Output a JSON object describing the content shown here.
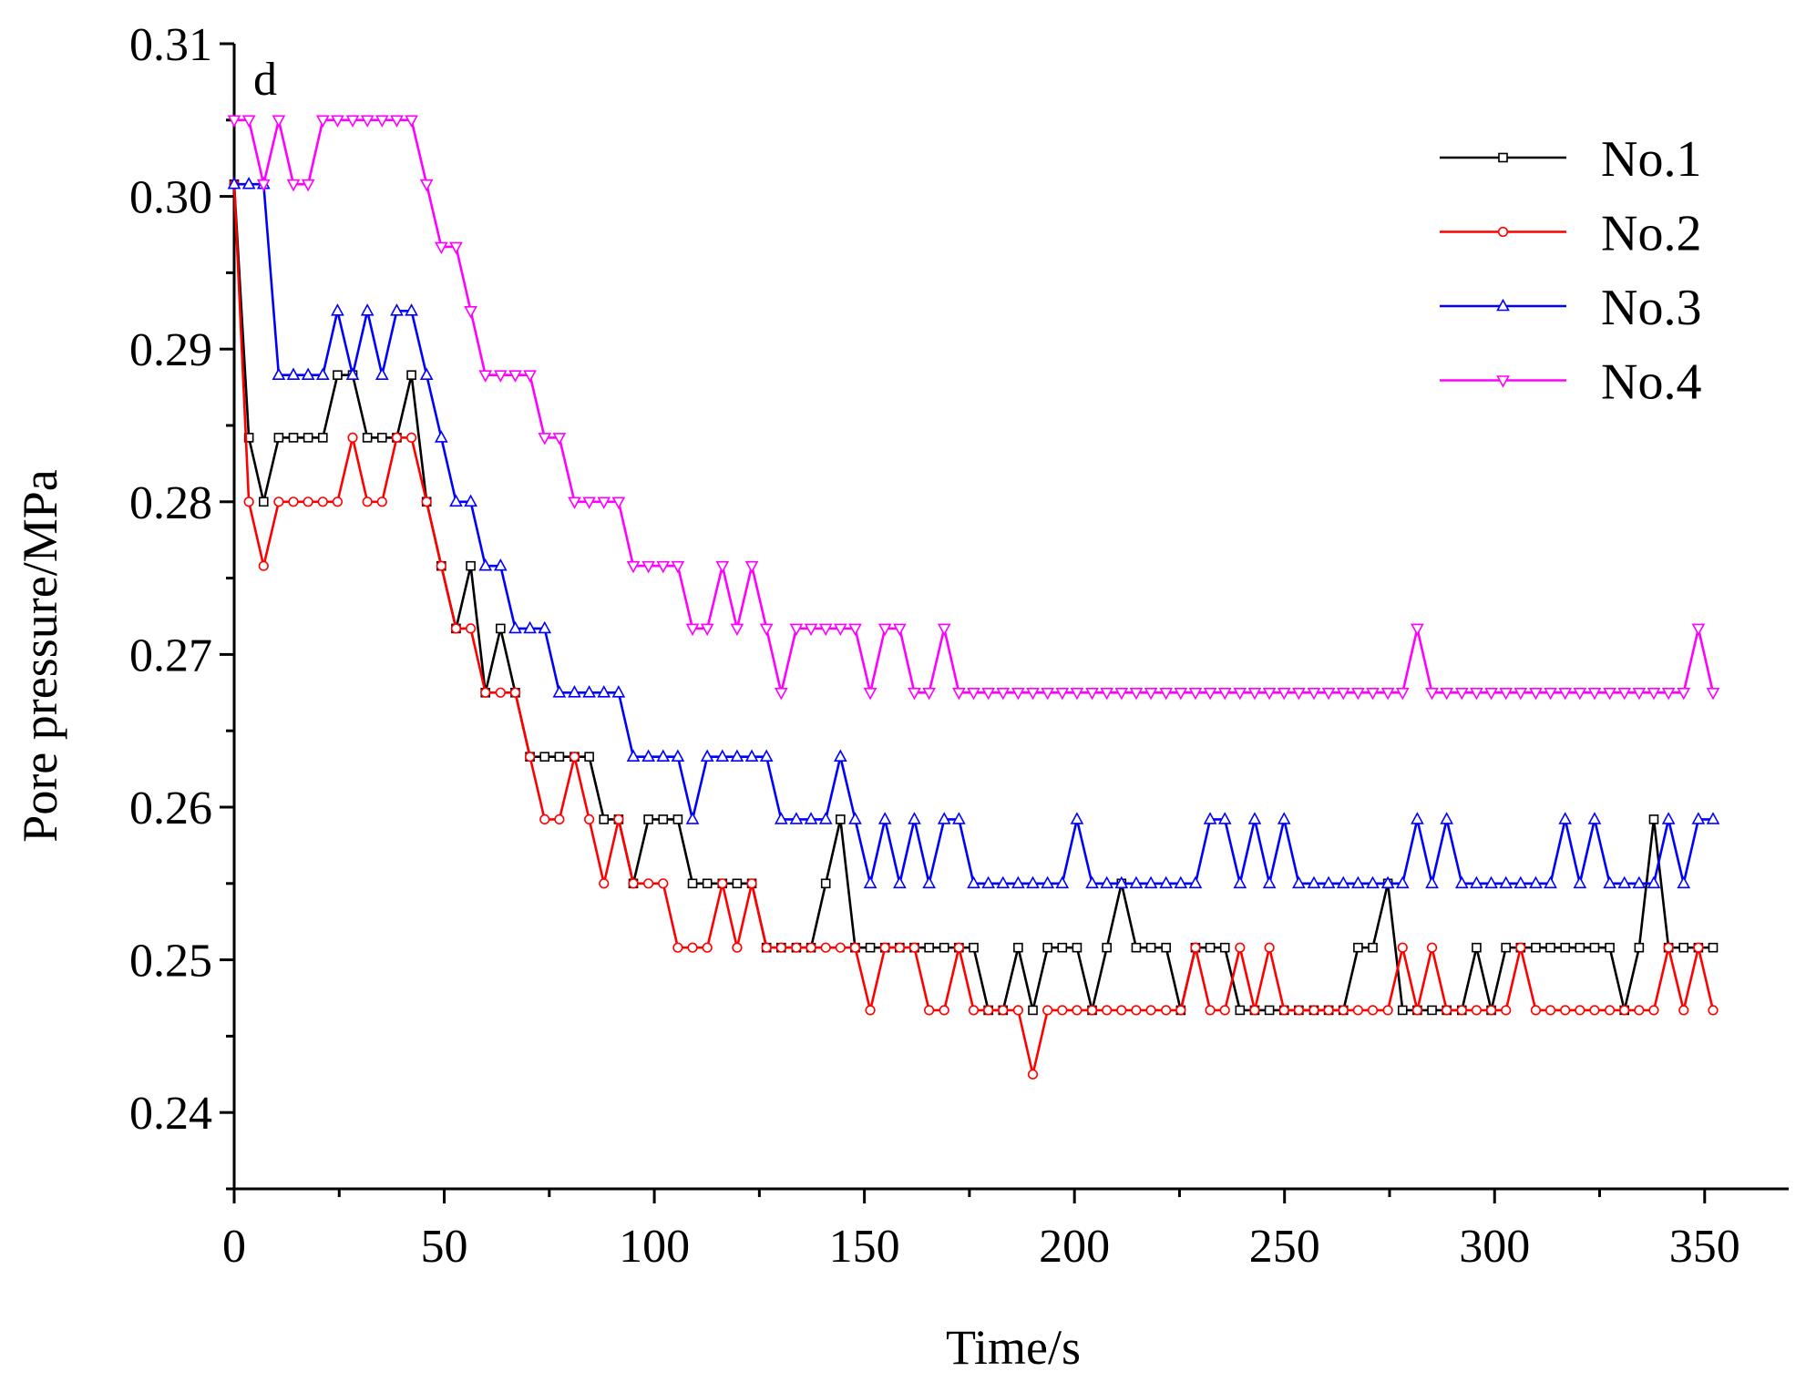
{
  "chart_data": {
    "type": "line",
    "title": "",
    "panel_label": "d",
    "xlabel": "Time/s",
    "ylabel": "Pore pressure/MPa",
    "xlim": [
      0,
      370
    ],
    "ylim": [
      0.235,
      0.31
    ],
    "xticks": [
      "0",
      "50",
      "100",
      "150",
      "200",
      "250",
      "300",
      "350"
    ],
    "yticks": [
      "0.24",
      "0.25",
      "0.26",
      "0.27",
      "0.28",
      "0.29",
      "0.30",
      "0.31"
    ],
    "grid": false,
    "legend_position": "top-right",
    "x": [
      0,
      3.5,
      7,
      10.6,
      14.1,
      17.6,
      21.1,
      24.6,
      28.2,
      31.7,
      35.2,
      38.7,
      42.2,
      45.8,
      49.3,
      52.8,
      56.3,
      59.8,
      63.4,
      66.9,
      70.4,
      73.9,
      77.4,
      81,
      84.5,
      88,
      91.5,
      95,
      98.6,
      102.1,
      105.6,
      109.1,
      112.6,
      116.2,
      119.7,
      123.2,
      126.7,
      130.2,
      133.8,
      137.3,
      140.8,
      144.3,
      147.8,
      151.4,
      154.9,
      158.4,
      161.9,
      165.4,
      169,
      172.5,
      176,
      179.5,
      183,
      186.6,
      190.1,
      193.6,
      197.1,
      200.6,
      204.2,
      207.7,
      211.2,
      214.7,
      218.2,
      221.8,
      225.3,
      228.8,
      232.3,
      235.8,
      239.4,
      242.9,
      246.4,
      249.9,
      253.4,
      257,
      260.5,
      264,
      267.5,
      271,
      274.6,
      278.1,
      281.6,
      285.1,
      288.6,
      292.2,
      295.7,
      299.2,
      302.7,
      306.2,
      309.8,
      313.3,
      316.8,
      320.3,
      323.8,
      327.4,
      330.9,
      334.4,
      337.9,
      341.4,
      345,
      348.5,
      352
    ],
    "series": [
      {
        "name": "No.1",
        "color": "#000000",
        "marker": "square",
        "values": [
          0.3008,
          0.2842,
          0.28,
          0.2842,
          0.2842,
          0.2842,
          0.2842,
          0.2883,
          0.2883,
          0.2842,
          0.2842,
          0.2842,
          0.2883,
          0.28,
          0.2758,
          0.2717,
          0.2758,
          0.2675,
          0.2717,
          0.2675,
          0.2633,
          0.2633,
          0.2633,
          0.2633,
          0.2633,
          0.2592,
          0.2592,
          0.255,
          0.2592,
          0.2592,
          0.2592,
          0.255,
          0.255,
          0.255,
          0.255,
          0.255,
          0.2508,
          0.2508,
          0.2508,
          0.2508,
          0.255,
          0.2592,
          0.2508,
          0.2508,
          0.2508,
          0.2508,
          0.2508,
          0.2508,
          0.2508,
          0.2508,
          0.2508,
          0.2467,
          0.2467,
          0.2508,
          0.2467,
          0.2508,
          0.2508,
          0.2508,
          0.2467,
          0.2508,
          0.255,
          0.2508,
          0.2508,
          0.2508,
          0.2467,
          0.2508,
          0.2508,
          0.2508,
          0.2467,
          0.2467,
          0.2467,
          0.2467,
          0.2467,
          0.2467,
          0.2467,
          0.2467,
          0.2508,
          0.2508,
          0.255,
          0.2467,
          0.2467,
          0.2467,
          0.2467,
          0.2467,
          0.2508,
          0.2467,
          0.2508,
          0.2508,
          0.2508,
          0.2508,
          0.2508,
          0.2508,
          0.2508,
          0.2508,
          0.2467,
          0.2508,
          0.2592,
          0.2508,
          0.2508,
          0.2508,
          0.2508
        ]
      },
      {
        "name": "No.2",
        "color": "#ff0000",
        "marker": "circle",
        "values": [
          0.3008,
          0.28,
          0.2758,
          0.28,
          0.28,
          0.28,
          0.28,
          0.28,
          0.2842,
          0.28,
          0.28,
          0.2842,
          0.2842,
          0.28,
          0.2758,
          0.2717,
          0.2717,
          0.2675,
          0.2675,
          0.2675,
          0.2633,
          0.2592,
          0.2592,
          0.2633,
          0.2592,
          0.255,
          0.2592,
          0.255,
          0.255,
          0.255,
          0.2508,
          0.2508,
          0.2508,
          0.255,
          0.2508,
          0.255,
          0.2508,
          0.2508,
          0.2508,
          0.2508,
          0.2508,
          0.2508,
          0.2508,
          0.2467,
          0.2508,
          0.2508,
          0.2508,
          0.2467,
          0.2467,
          0.2508,
          0.2467,
          0.2467,
          0.2467,
          0.2467,
          0.2425,
          0.2467,
          0.2467,
          0.2467,
          0.2467,
          0.2467,
          0.2467,
          0.2467,
          0.2467,
          0.2467,
          0.2467,
          0.2508,
          0.2467,
          0.2467,
          0.2508,
          0.2467,
          0.2508,
          0.2467,
          0.2467,
          0.2467,
          0.2467,
          0.2467,
          0.2467,
          0.2467,
          0.2467,
          0.2508,
          0.2467,
          0.2508,
          0.2467,
          0.2467,
          0.2467,
          0.2467,
          0.2467,
          0.2508,
          0.2467,
          0.2467,
          0.2467,
          0.2467,
          0.2467,
          0.2467,
          0.2467,
          0.2467,
          0.2467,
          0.2508,
          0.2467,
          0.2508,
          0.2467
        ]
      },
      {
        "name": "No.3",
        "color": "#0000ff",
        "marker": "triangle-up",
        "values": [
          0.3008,
          0.3008,
          0.3008,
          0.2883,
          0.2883,
          0.2883,
          0.2883,
          0.2925,
          0.2883,
          0.2925,
          0.2883,
          0.2925,
          0.2925,
          0.2883,
          0.2842,
          0.28,
          0.28,
          0.2758,
          0.2758,
          0.2717,
          0.2717,
          0.2717,
          0.2675,
          0.2675,
          0.2675,
          0.2675,
          0.2675,
          0.2633,
          0.2633,
          0.2633,
          0.2633,
          0.2592,
          0.2633,
          0.2633,
          0.2633,
          0.2633,
          0.2633,
          0.2592,
          0.2592,
          0.2592,
          0.2592,
          0.2633,
          0.2592,
          0.255,
          0.2592,
          0.255,
          0.2592,
          0.255,
          0.2592,
          0.2592,
          0.255,
          0.255,
          0.255,
          0.255,
          0.255,
          0.255,
          0.255,
          0.2592,
          0.255,
          0.255,
          0.255,
          0.255,
          0.255,
          0.255,
          0.255,
          0.255,
          0.2592,
          0.2592,
          0.255,
          0.2592,
          0.255,
          0.2592,
          0.255,
          0.255,
          0.255,
          0.255,
          0.255,
          0.255,
          0.255,
          0.255,
          0.2592,
          0.255,
          0.2592,
          0.255,
          0.255,
          0.255,
          0.255,
          0.255,
          0.255,
          0.255,
          0.2592,
          0.255,
          0.2592,
          0.255,
          0.255,
          0.255,
          0.255,
          0.2592,
          0.255,
          0.2592,
          0.2592
        ]
      },
      {
        "name": "No.4",
        "color": "#ff00ff",
        "marker": "triangle-down",
        "values": [
          0.305,
          0.305,
          0.3008,
          0.305,
          0.3008,
          0.3008,
          0.305,
          0.305,
          0.305,
          0.305,
          0.305,
          0.305,
          0.305,
          0.3008,
          0.2967,
          0.2967,
          0.2925,
          0.2883,
          0.2883,
          0.2883,
          0.2883,
          0.2842,
          0.2842,
          0.28,
          0.28,
          0.28,
          0.28,
          0.2758,
          0.2758,
          0.2758,
          0.2758,
          0.2717,
          0.2717,
          0.2758,
          0.2717,
          0.2758,
          0.2717,
          0.2675,
          0.2717,
          0.2717,
          0.2717,
          0.2717,
          0.2717,
          0.2675,
          0.2717,
          0.2717,
          0.2675,
          0.2675,
          0.2717,
          0.2675,
          0.2675,
          0.2675,
          0.2675,
          0.2675,
          0.2675,
          0.2675,
          0.2675,
          0.2675,
          0.2675,
          0.2675,
          0.2675,
          0.2675,
          0.2675,
          0.2675,
          0.2675,
          0.2675,
          0.2675,
          0.2675,
          0.2675,
          0.2675,
          0.2675,
          0.2675,
          0.2675,
          0.2675,
          0.2675,
          0.2675,
          0.2675,
          0.2675,
          0.2675,
          0.2675,
          0.2717,
          0.2675,
          0.2675,
          0.2675,
          0.2675,
          0.2675,
          0.2675,
          0.2675,
          0.2675,
          0.2675,
          0.2675,
          0.2675,
          0.2675,
          0.2675,
          0.2675,
          0.2675,
          0.2675,
          0.2675,
          0.2675,
          0.2717,
          0.2675
        ]
      }
    ]
  }
}
